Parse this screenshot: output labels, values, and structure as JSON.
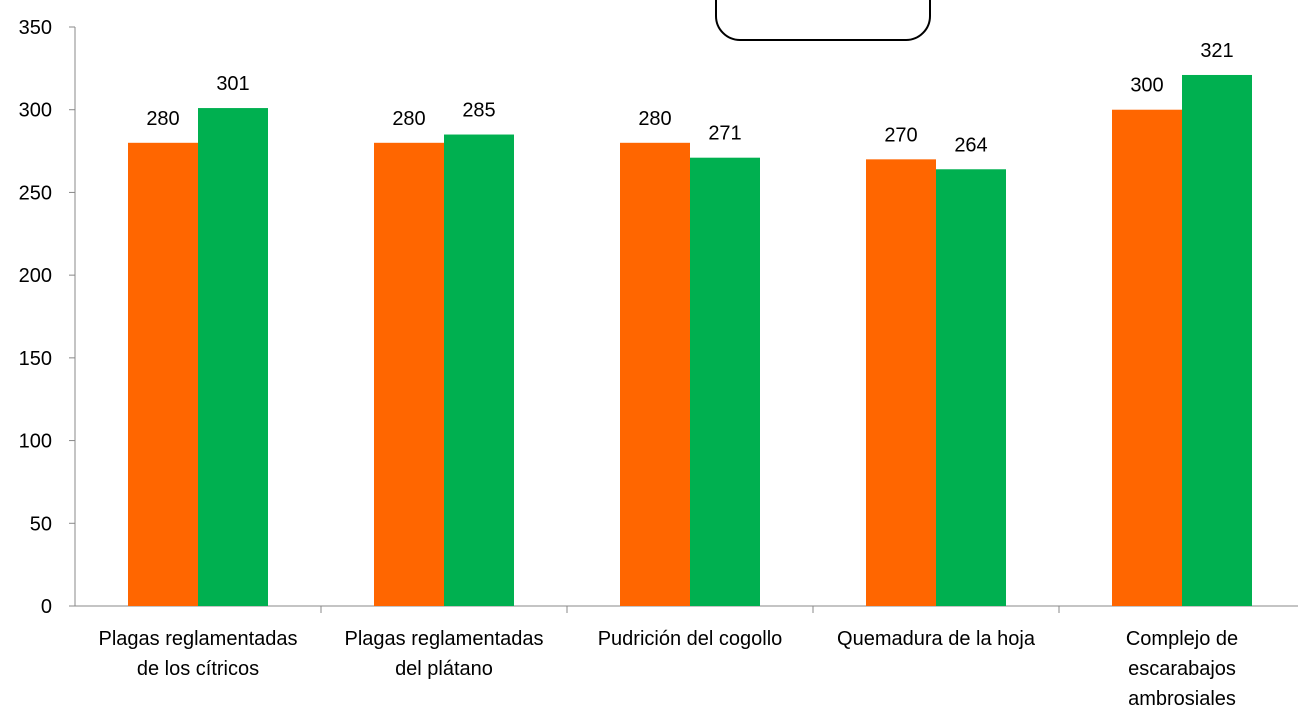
{
  "chart_data": {
    "type": "bar",
    "categories": [
      "Plagas reglamentadas\nde los cítricos",
      "Plagas reglamentadas\ndel plátano",
      "Pudrición del cogollo",
      "Quemadura de la hoja",
      "Complejo de\nescarabajos\nambrosiales"
    ],
    "series": [
      {
        "color": "#ff6600",
        "values": [
          280,
          280,
          280,
          270,
          300
        ]
      },
      {
        "color": "#00b050",
        "values": [
          301,
          285,
          271,
          264,
          321
        ]
      }
    ],
    "ylim": [
      0,
      350
    ],
    "yticks": [
      0,
      50,
      100,
      150,
      200,
      250,
      300,
      350
    ],
    "grid": false
  }
}
